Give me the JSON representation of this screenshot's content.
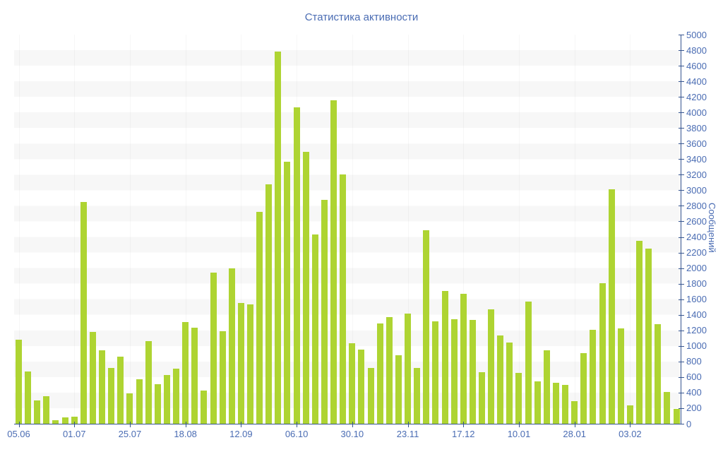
{
  "title": "Статистика активности",
  "chart_data": {
    "type": "bar",
    "title": "Статистика активности",
    "xlabel": "",
    "ylabel": "Сообщений",
    "ylim": [
      0,
      5000
    ],
    "y_tick_step": 200,
    "grid": "horizontal-bands",
    "legend_position": "none",
    "bar_color": "#aed432",
    "stripe_color": "#f7f7f7",
    "label_color": "#4a6cb3",
    "axis_color": "#35548f",
    "x_tick_labels": [
      "05.06",
      "01.07",
      "25.07",
      "18.08",
      "12.09",
      "06.10",
      "30.10",
      "23.11",
      "17.12",
      "10.01",
      "28.01",
      "03.02"
    ],
    "x_tick_every": 6,
    "values": [
      1080,
      670,
      300,
      355,
      45,
      80,
      90,
      2850,
      1180,
      945,
      720,
      860,
      390,
      570,
      1060,
      505,
      630,
      710,
      1310,
      1230,
      430,
      1940,
      1190,
      2000,
      1550,
      1535,
      2720,
      3080,
      4780,
      3370,
      4070,
      3490,
      2430,
      2880,
      4160,
      3200,
      1035,
      950,
      720,
      1290,
      1370,
      880,
      1420,
      720,
      2490,
      1320,
      1710,
      1340,
      1670,
      1330,
      660,
      1470,
      1130,
      1040,
      655,
      1570,
      545,
      940,
      525,
      495,
      290,
      905,
      1210,
      1805,
      3010,
      1225,
      235,
      2350,
      2250,
      1280,
      410,
      190
    ]
  }
}
